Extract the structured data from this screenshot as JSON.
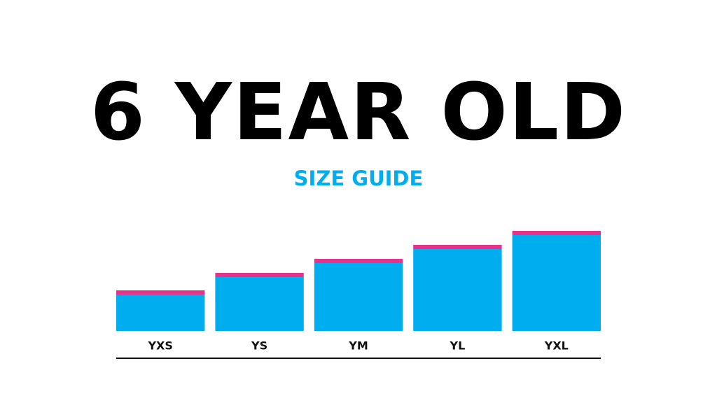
{
  "chart_data": {
    "type": "bar",
    "stacked": true,
    "title": "6 YEAR OLD",
    "subtitle": "SIZE GUIDE",
    "categories": [
      "YXS",
      "YS",
      "YM",
      "YL",
      "YXL"
    ],
    "series": [
      {
        "color": "#00aeef",
        "values": [
          52,
          77,
          97,
          117,
          137
        ]
      },
      {
        "color": "#e8318a",
        "values": [
          6,
          6,
          6,
          6,
          6
        ]
      }
    ],
    "ylim": [
      0,
      160
    ]
  }
}
